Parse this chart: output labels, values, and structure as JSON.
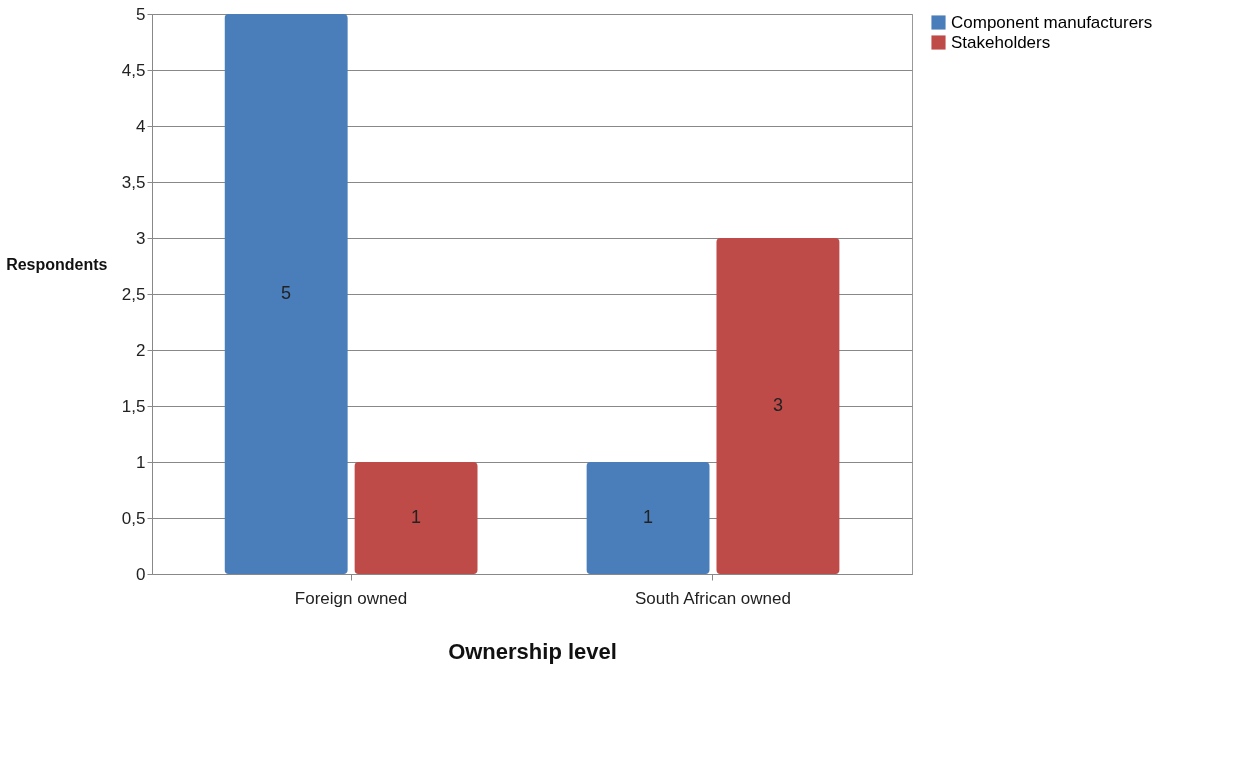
{
  "chart_data": {
    "type": "bar",
    "xlabel": "Ownership level",
    "ylabel": "Respondents",
    "categories": [
      "Foreign owned",
      "South African owned"
    ],
    "series": [
      {
        "name": "Component manufacturers",
        "color": "#4a7ebb",
        "values": [
          5,
          1
        ]
      },
      {
        "name": "Stakeholders",
        "color": "#be4b48",
        "values": [
          1,
          3
        ]
      }
    ],
    "ylim": [
      0,
      5
    ],
    "yticks": [
      0,
      {
        "value": 0.5,
        "label": "0,5"
      },
      1,
      {
        "value": 1.5,
        "label": "1,5"
      },
      2,
      {
        "value": 2.5,
        "label": "2,5"
      },
      3,
      {
        "value": 3.5,
        "label": "3,5"
      },
      4,
      {
        "value": 4.5,
        "label": "4,5"
      },
      5
    ],
    "grid": "y",
    "legend": "right",
    "data_labels": true
  }
}
